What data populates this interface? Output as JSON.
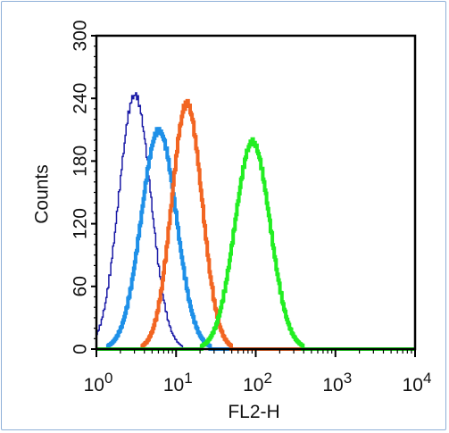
{
  "chart_data": {
    "type": "line",
    "xlabel": "FL2-H",
    "ylabel": "Counts",
    "x_scale": "log",
    "xlim": [
      1,
      10000
    ],
    "ylim": [
      0,
      300
    ],
    "y_ticks": [
      "0",
      "60",
      "120",
      "180",
      "240",
      "300"
    ],
    "x_ticks": [
      {
        "base": "10",
        "exp": "0"
      },
      {
        "base": "10",
        "exp": "1"
      },
      {
        "base": "10",
        "exp": "2"
      },
      {
        "base": "10",
        "exp": "3"
      },
      {
        "base": "10",
        "exp": "4"
      }
    ],
    "grid": false,
    "legend": "none",
    "series": [
      {
        "color": "#1a1aa6",
        "stroke": "thin",
        "peak_x": 3.0,
        "peak_y": 243,
        "log_width": 0.2,
        "peak_dy": [
          0,
          3,
          -2,
          4,
          -3,
          2,
          -1,
          3,
          -2,
          0
        ]
      },
      {
        "color": "#1e90e8",
        "stroke": "thick",
        "peak_x": 6.0,
        "peak_y": 209,
        "log_width": 0.22,
        "peak_dy": [
          0,
          2,
          -2,
          3,
          -1,
          2,
          -2,
          1,
          0,
          0
        ]
      },
      {
        "color": "#f26522",
        "stroke": "thick",
        "peak_x": 13.5,
        "peak_y": 235,
        "log_width": 0.19,
        "peak_dy": [
          0,
          3,
          -3,
          2,
          -2,
          3,
          -1,
          2,
          -2,
          0
        ]
      },
      {
        "color": "#22ee22",
        "stroke": "thick",
        "peak_x": 90,
        "peak_y": 198,
        "log_width": 0.22,
        "peak_dy": [
          0,
          2,
          -2,
          3,
          -2,
          1,
          -1,
          2,
          -1,
          0
        ]
      }
    ]
  }
}
